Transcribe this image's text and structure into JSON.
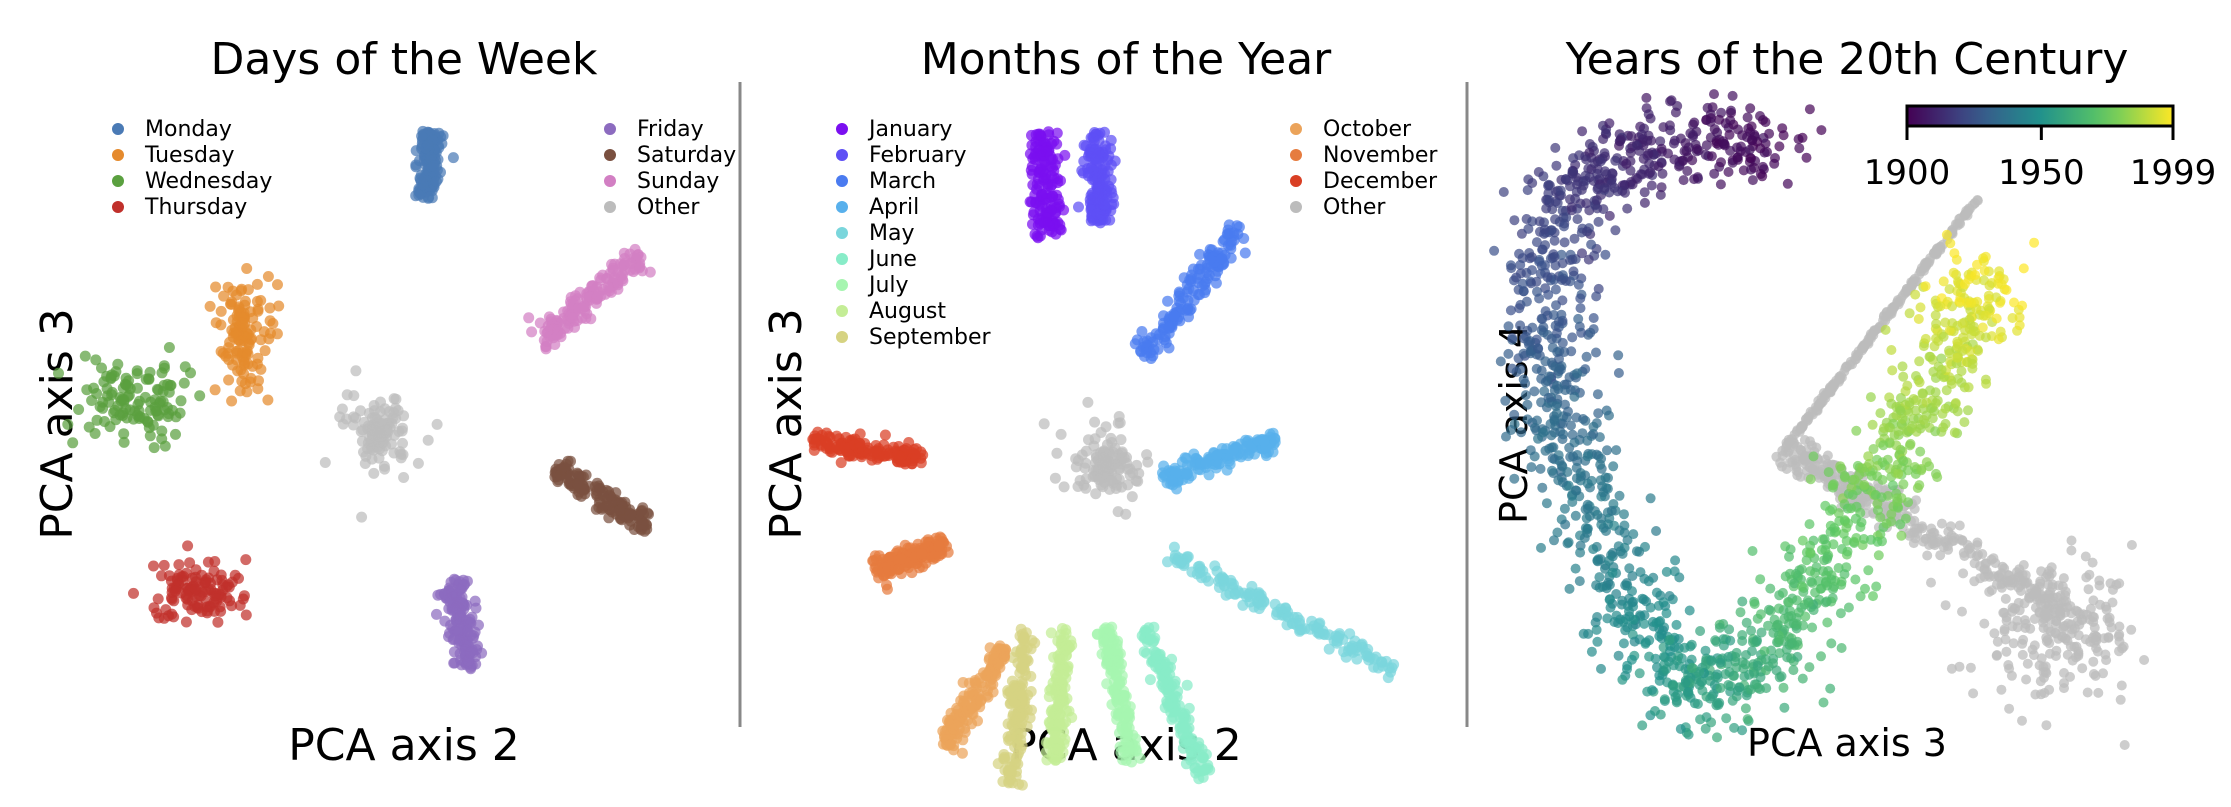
{
  "chart_data": [
    {
      "type": "scatter",
      "title": "Days of the Week",
      "xlabel": "PCA axis 2",
      "ylabel": "PCA axis 3",
      "grid": false,
      "legend_position": "top, split in two columns",
      "legend": [
        "Monday",
        "Tuesday",
        "Wednesday",
        "Thursday",
        "Friday",
        "Saturday",
        "Sunday",
        "Other"
      ],
      "series": [
        {
          "name": "Monday",
          "color": "#4a7ab5",
          "shape": "stick",
          "from": [
            0.15,
            0.78
          ],
          "to": [
            0.18,
            1.0
          ],
          "spread": 0.04
        },
        {
          "name": "Tuesday",
          "color": "#e58a2d",
          "shape": "blob",
          "center": [
            -0.47,
            0.33
          ],
          "radius": [
            0.1,
            0.18
          ]
        },
        {
          "name": "Wednesday",
          "color": "#5aa03f",
          "shape": "blob",
          "center": [
            -0.85,
            0.1
          ],
          "radius": [
            0.18,
            0.13
          ]
        },
        {
          "name": "Thursday",
          "color": "#c0302b",
          "shape": "blob",
          "center": [
            -0.63,
            -0.53
          ],
          "radius": [
            0.16,
            0.1
          ]
        },
        {
          "name": "Friday",
          "color": "#8c6bbf",
          "shape": "stick",
          "from": [
            0.25,
            -0.49
          ],
          "to": [
            0.31,
            -0.79
          ],
          "spread": 0.04
        },
        {
          "name": "Saturday",
          "color": "#7a5040",
          "shape": "stick",
          "from": [
            0.6,
            -0.12
          ],
          "to": [
            0.93,
            -0.32
          ],
          "spread": 0.04
        },
        {
          "name": "Sunday",
          "color": "#d27fc3",
          "shape": "stick",
          "from": [
            0.55,
            0.3
          ],
          "to": [
            0.91,
            0.6
          ],
          "spread": 0.05
        },
        {
          "name": "Other",
          "color": "#bcbcbc",
          "shape": "hub",
          "center": [
            0.0,
            0.0
          ],
          "radius": 0.12
        }
      ]
    },
    {
      "type": "scatter",
      "title": "Months of the Year",
      "xlabel": "PCA axis 2",
      "ylabel": "PCA axis 3",
      "grid": false,
      "legend_position": "top, split in two columns",
      "legend": [
        "January",
        "February",
        "March",
        "April",
        "May",
        "June",
        "July",
        "August",
        "September",
        "October",
        "November",
        "December",
        "Other"
      ],
      "series": [
        {
          "name": "January",
          "color": "#7a0ff0",
          "shape": "stick",
          "from": [
            -0.18,
            0.68
          ],
          "to": [
            -0.2,
            1.0
          ],
          "spread": 0.05
        },
        {
          "name": "February",
          "color": "#5e4ff5",
          "shape": "stick",
          "from": [
            -0.02,
            0.72
          ],
          "to": [
            -0.03,
            1.0
          ],
          "spread": 0.04
        },
        {
          "name": "March",
          "color": "#4a7bf0",
          "shape": "stick",
          "from": [
            0.12,
            0.32
          ],
          "to": [
            0.42,
            0.72
          ],
          "spread": 0.04
        },
        {
          "name": "April",
          "color": "#58b0ec",
          "shape": "stick",
          "from": [
            0.18,
            -0.05
          ],
          "to": [
            0.53,
            0.07
          ],
          "spread": 0.03
        },
        {
          "name": "May",
          "color": "#7ad6dc",
          "shape": "stick",
          "from": [
            0.2,
            -0.28
          ],
          "to": [
            0.9,
            -0.63
          ],
          "spread": 0.03
        },
        {
          "name": "June",
          "color": "#88ecc8",
          "shape": "stick",
          "from": [
            0.12,
            -0.5
          ],
          "to": [
            0.31,
            -0.96
          ],
          "spread": 0.03
        },
        {
          "name": "July",
          "color": "#a6f5b0",
          "shape": "stick",
          "from": [
            0.0,
            -0.5
          ],
          "to": [
            0.08,
            -0.91
          ],
          "spread": 0.03
        },
        {
          "name": "August",
          "color": "#c4ed96",
          "shape": "stick",
          "from": [
            -0.13,
            -0.5
          ],
          "to": [
            -0.16,
            -0.91
          ],
          "spread": 0.03
        },
        {
          "name": "September",
          "color": "#d6d382",
          "shape": "stick",
          "from": [
            -0.25,
            -0.5
          ],
          "to": [
            -0.3,
            -0.98
          ],
          "spread": 0.03
        },
        {
          "name": "October",
          "color": "#eba35a",
          "shape": "stick",
          "from": [
            -0.32,
            -0.56
          ],
          "to": [
            -0.5,
            -0.86
          ],
          "spread": 0.04
        },
        {
          "name": "November",
          "color": "#e67c3f",
          "shape": "stick",
          "from": [
            -0.5,
            -0.25
          ],
          "to": [
            -0.72,
            -0.33
          ],
          "spread": 0.04
        },
        {
          "name": "December",
          "color": "#d93f24",
          "shape": "stick",
          "from": [
            -0.92,
            0.06
          ],
          "to": [
            -0.57,
            0.01
          ],
          "spread": 0.03
        },
        {
          "name": "Other",
          "color": "#bcbcbc",
          "shape": "hub",
          "center": [
            0.0,
            0.0
          ],
          "radius": 0.12
        }
      ]
    },
    {
      "type": "scatter",
      "title": "Years of the 20th Century",
      "xlabel": "PCA axis 3",
      "ylabel": "PCA axis 4",
      "grid": false,
      "colorbar": {
        "colormap": "viridis",
        "ticks": [
          "1900",
          "1950",
          "1999"
        ],
        "range": [
          1900,
          1999
        ],
        "position": "top-right"
      },
      "series": [
        {
          "name": "Years",
          "shape": "colormap-arc",
          "colormap": "viridis",
          "range": [
            1900,
            1999
          ]
        },
        {
          "name": "Other",
          "color": "#bcbcbc",
          "shape": "hub-arms"
        }
      ]
    }
  ]
}
